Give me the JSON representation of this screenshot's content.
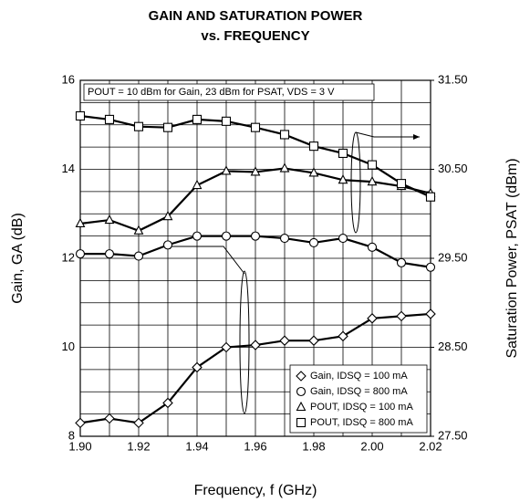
{
  "chart_data": {
    "type": "line",
    "title": [
      "GAIN AND SATURATION POWER",
      "vs. FREQUENCY"
    ],
    "annotation": "POUT = 10 dBm for Gain, 23 dBm for PSAT, VDS = 3 V",
    "xlabel": "Frequency, f (GHz)",
    "ylabel": "Gain, GA (dB)",
    "y2label": "Saturation Power, PSAT (dBm)",
    "x": [
      1.9,
      1.91,
      1.92,
      1.93,
      1.94,
      1.95,
      1.96,
      1.97,
      1.98,
      1.99,
      2.0,
      2.01,
      2.02
    ],
    "xlim": [
      1.9,
      2.02
    ],
    "xticks": [
      {
        "value": 1.9,
        "label": "1.90"
      },
      {
        "value": 1.92,
        "label": "1.92"
      },
      {
        "value": 1.94,
        "label": "1.94"
      },
      {
        "value": 1.96,
        "label": "1.96"
      },
      {
        "value": 1.98,
        "label": "1.98"
      },
      {
        "value": 2.0,
        "label": "2.00"
      },
      {
        "value": 2.02,
        "label": "2.02"
      }
    ],
    "ylim": [
      8,
      16
    ],
    "yticks": [
      8,
      10,
      12,
      14,
      16
    ],
    "y2lim": [
      27.5,
      31.5
    ],
    "y2ticks": [
      {
        "value": 27.5,
        "label": "27.50"
      },
      {
        "value": 28.5,
        "label": "28.50"
      },
      {
        "value": 29.5,
        "label": "29.50"
      },
      {
        "value": 30.5,
        "label": "30.50"
      },
      {
        "value": 31.5,
        "label": "31.50"
      }
    ],
    "grid": true,
    "legend": "lower right",
    "series": [
      {
        "name": "Gain, IDSQ = 100 mA",
        "color": "#000000",
        "marker": "diamond",
        "values": [
          8.3,
          8.4,
          8.3,
          8.75,
          9.55,
          10.0,
          10.05,
          10.15,
          10.15,
          10.25,
          10.65,
          10.7,
          10.75
        ]
      },
      {
        "name": "Gain, IDSQ = 800 mA",
        "color": "#000000",
        "marker": "circle",
        "values": [
          12.1,
          12.1,
          12.05,
          12.3,
          12.5,
          12.5,
          12.5,
          12.45,
          12.35,
          12.45,
          12.25,
          11.9,
          11.8
        ]
      },
      {
        "name": "POUT, IDSQ = 100 mA",
        "color": "#000000",
        "marker": "triangle",
        "axis": "y2",
        "values": [
          29.89,
          29.93,
          29.81,
          29.97,
          30.32,
          30.48,
          30.47,
          30.51,
          30.46,
          30.38,
          30.36,
          30.31,
          30.23
        ]
      },
      {
        "name": "POUT, IDSQ = 800 mA",
        "color": "#000000",
        "marker": "square",
        "axis": "y2",
        "values": [
          31.1,
          31.06,
          30.98,
          30.97,
          31.06,
          31.04,
          30.97,
          30.89,
          30.76,
          30.68,
          30.55,
          30.34,
          30.19
        ]
      }
    ]
  }
}
